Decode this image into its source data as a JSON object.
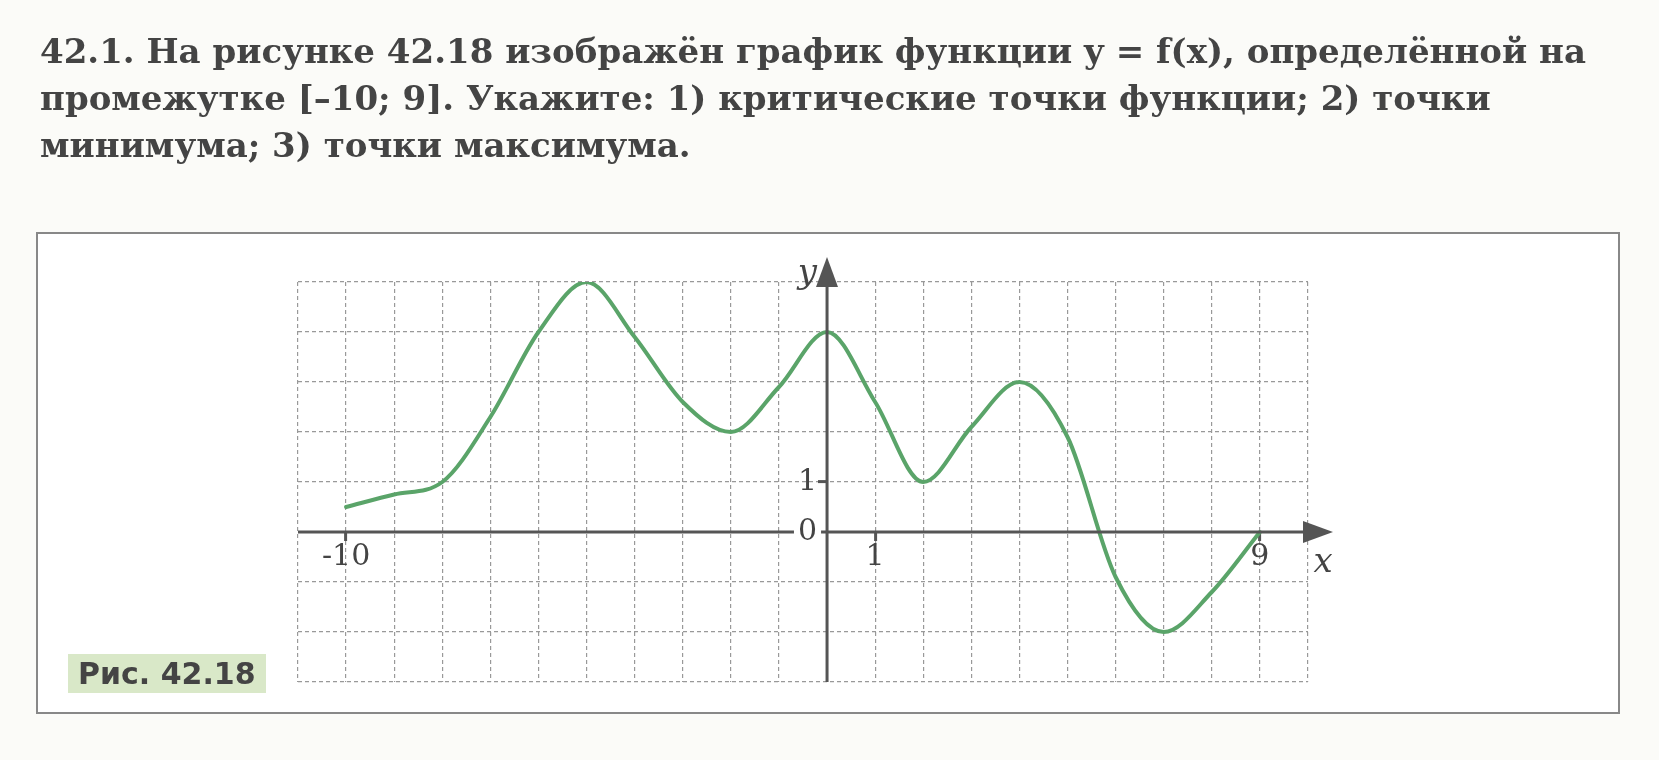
{
  "chart_data": {
    "type": "line",
    "title": "42.1. На рисунке 42.18 изображён график функции y = f(x), определённой на промежутке [–10; 9]. Укажите: 1) критические точки функции; 2) точки минимума; 3) точки максимума.",
    "xlabel": "x",
    "ylabel": "y",
    "annotations": [
      "Рис. 42.18"
    ],
    "x": [
      -10,
      -9,
      -8,
      -7,
      -6,
      -5,
      -4,
      -3,
      -2,
      -1,
      0,
      1,
      2,
      3,
      4,
      5,
      6,
      7,
      8,
      9
    ],
    "series": [
      {
        "color": "#5aa469",
        "values": [
          0.5,
          0.75,
          1,
          2.3,
          4,
          5,
          3.9,
          2.6,
          2,
          2.9,
          4,
          2.6,
          1,
          2.1,
          3,
          1.9,
          -0.9,
          -2,
          -1.2,
          0
        ]
      }
    ],
    "xlim": [
      -11,
      10
    ],
    "ylim": [
      -3,
      5
    ],
    "xticks": [
      {
        "value": -11,
        "label": null
      },
      -10,
      {
        "value": -9,
        "label": null
      },
      {
        "value": -8,
        "label": null
      },
      {
        "value": -7,
        "label": null
      },
      {
        "value": -6,
        "label": null
      },
      {
        "value": -5,
        "label": null
      },
      {
        "value": -4,
        "label": null
      },
      {
        "value": -3,
        "label": null
      },
      {
        "value": -2,
        "label": null
      },
      {
        "value": -1,
        "label": null
      },
      {
        "value": 0,
        "label": null
      },
      1,
      {
        "value": 2,
        "label": null
      },
      {
        "value": 3,
        "label": null
      },
      {
        "value": 4,
        "label": null
      },
      {
        "value": 5,
        "label": null
      },
      {
        "value": 6,
        "label": null
      },
      {
        "value": 7,
        "label": null
      },
      {
        "value": 8,
        "label": null
      },
      9,
      {
        "value": 10,
        "label": null
      }
    ],
    "yticks": [
      {
        "value": -3,
        "label": null
      },
      {
        "value": -2,
        "label": null
      },
      {
        "value": -1,
        "label": null
      },
      0,
      1,
      {
        "value": 2,
        "label": null
      },
      {
        "value": 3,
        "label": null
      },
      {
        "value": 4,
        "label": null
      },
      {
        "value": 5,
        "label": null
      }
    ],
    "grid": true,
    "marker": "none",
    "line_style": "solid"
  }
}
